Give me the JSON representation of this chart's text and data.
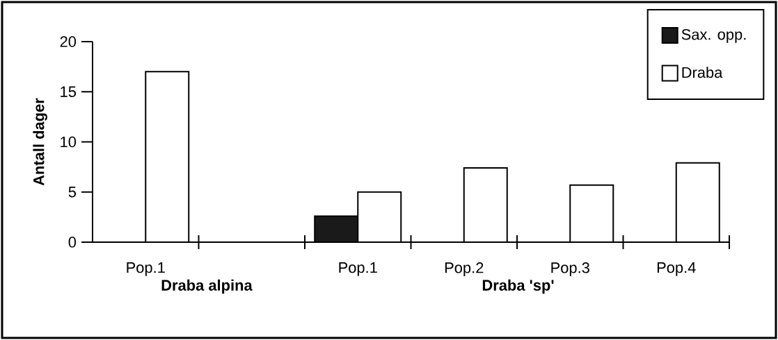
{
  "chart_data": {
    "type": "bar",
    "ylabel": "Antall dager",
    "categories": [
      "Pop.1",
      null,
      "Pop.1",
      "Pop.2",
      "Pop.3",
      "Pop.4"
    ],
    "series": [
      {
        "name": "Sax. opp.",
        "color": "#1a1a1a",
        "values": [
          null,
          null,
          2.6,
          null,
          null,
          null
        ]
      },
      {
        "name": "Draba",
        "color": "#ffffff",
        "values": [
          17,
          null,
          5,
          7.4,
          5.7,
          7.9
        ]
      }
    ],
    "ylim": [
      0,
      20
    ],
    "yticks": [
      0,
      5,
      10,
      15,
      20
    ],
    "legend": "top right",
    "annotations": [
      "Draba alpina",
      "Draba 'sp'"
    ]
  }
}
